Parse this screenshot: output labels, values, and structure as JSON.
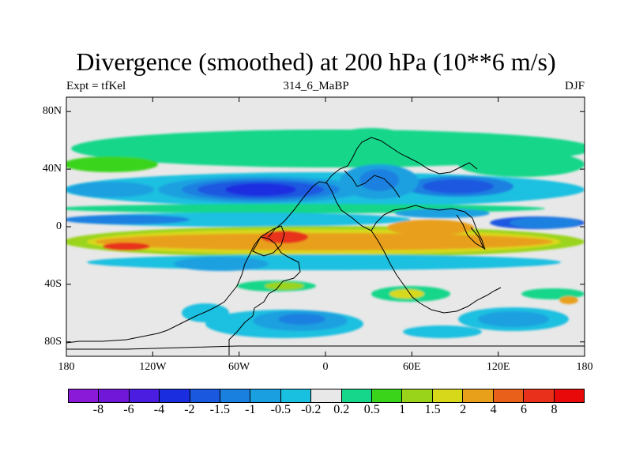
{
  "title": "Divergence (smoothed) at 200 hPa (10**6 m/s)",
  "subtitle_left": "Expt = tfKel",
  "subtitle_center": "314_6_MaBP",
  "subtitle_right": "DJF",
  "y_ticks": [
    "80N",
    "40N",
    "0",
    "40S",
    "80S"
  ],
  "y_tick_lats": [
    80,
    40,
    0,
    -40,
    -80
  ],
  "x_ticks": [
    "180",
    "120W",
    "60W",
    "0",
    "60E",
    "120E",
    "180"
  ],
  "x_tick_lons": [
    -180,
    -120,
    -60,
    0,
    60,
    120,
    180
  ],
  "map_extent": {
    "lon": [
      -180,
      180
    ],
    "lat": [
      -90,
      90
    ]
  },
  "colorbar": {
    "labels": [
      "-8",
      "-6",
      "-4",
      "-2",
      "-1.5",
      "-1",
      "-0.5",
      "-0.2",
      "0.2",
      "0.5",
      "1",
      "1.5",
      "2",
      "4",
      "6",
      "8"
    ],
    "colors": [
      "#8a1ad8",
      "#7118d8",
      "#4a1de0",
      "#1a2ee0",
      "#1a58e0",
      "#1a80e0",
      "#1aa0e0",
      "#1ac0e0",
      "#e8e8e8",
      "#15d68a",
      "#3ad41a",
      "#9ad41a",
      "#d8d81a",
      "#e8a01a",
      "#e8601a",
      "#e8301a",
      "#e80a0a"
    ]
  },
  "field_colors": {
    "neutral": "#e8e8e8",
    "strong_div_red": "#e8301a",
    "div_orange": "#e8a01a",
    "div_yellow": "#d8d81a",
    "div_lime": "#9ad41a",
    "div_green": "#3ad41a",
    "weak_div_teal": "#15d68a",
    "weak_conv_cyan": "#1ac0e0",
    "conv_sky": "#1aa0e0",
    "conv_blue": "#1a80e0",
    "conv_dark": "#1a58e0",
    "strong_conv": "#1a2ee0",
    "very_strong_conv": "#4a1de0"
  }
}
